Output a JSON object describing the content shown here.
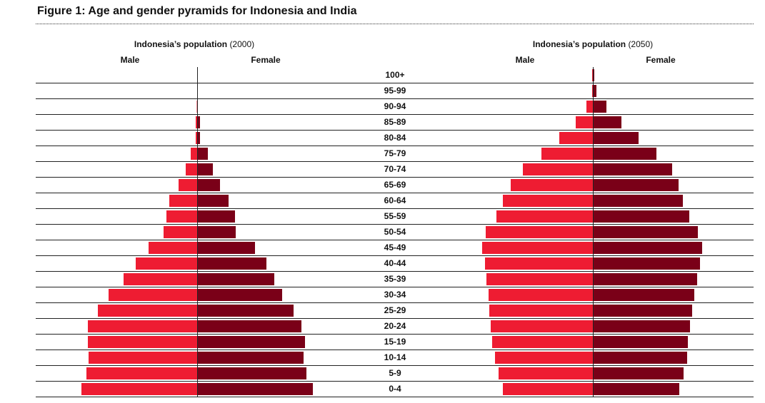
{
  "title": "Figure 1: Age and gender pyramids for Indonesia and India",
  "colors": {
    "male": "#ee1c32",
    "female": "#7a0018",
    "rule": "#222222"
  },
  "chart_data": [
    {
      "type": "bar",
      "orientation": "horizontal-pyramid",
      "title": "Indonesia’s population (2000)",
      "title_main": "Indonesia’s population",
      "title_year": "(2000)",
      "categories": [
        "100+",
        "95-99",
        "90-94",
        "85-89",
        "80-84",
        "75-79",
        "70-74",
        "65-69",
        "60-64",
        "55-59",
        "50-54",
        "45-49",
        "40-44",
        "35-39",
        "30-34",
        "25-29",
        "20-24",
        "15-19",
        "10-14",
        "5-9",
        "0-4"
      ],
      "series": [
        {
          "name": "Male",
          "values": [
            0,
            0,
            0.5,
            2,
            2,
            9,
            16,
            26,
            39,
            43,
            47,
            68,
            86,
            103,
            124,
            139,
            153,
            153,
            152,
            155,
            162
          ]
        },
        {
          "name": "Female",
          "values": [
            0,
            0,
            1,
            4,
            4,
            15,
            22,
            32,
            44,
            53,
            54,
            81,
            97,
            108,
            119,
            135,
            146,
            151,
            149,
            153,
            162
          ]
        }
      ],
      "xlim": [
        -225,
        225
      ]
    },
    {
      "type": "bar",
      "orientation": "horizontal-pyramid",
      "title": "Indonesia’s population (2050)",
      "title_main": "Indonesia’s population",
      "title_year": "(2050)",
      "categories": [
        "100+",
        "95-99",
        "90-94",
        "85-89",
        "80-84",
        "75-79",
        "70-74",
        "65-69",
        "60-64",
        "55-59",
        "50-54",
        "45-49",
        "40-44",
        "35-39",
        "30-34",
        "25-29",
        "20-24",
        "15-19",
        "10-14",
        "5-9",
        "0-4"
      ],
      "series": [
        {
          "name": "Male",
          "values": [
            1,
            1,
            9,
            24,
            47,
            72,
            98,
            115,
            126,
            135,
            150,
            155,
            151,
            149,
            146,
            145,
            143,
            141,
            137,
            132,
            126
          ]
        },
        {
          "name": "Female",
          "values": [
            2,
            5,
            19,
            40,
            64,
            89,
            111,
            120,
            126,
            135,
            147,
            153,
            150,
            146,
            142,
            139,
            136,
            133,
            132,
            127,
            121
          ]
        }
      ],
      "xlim": [
        -225,
        225
      ]
    }
  ]
}
